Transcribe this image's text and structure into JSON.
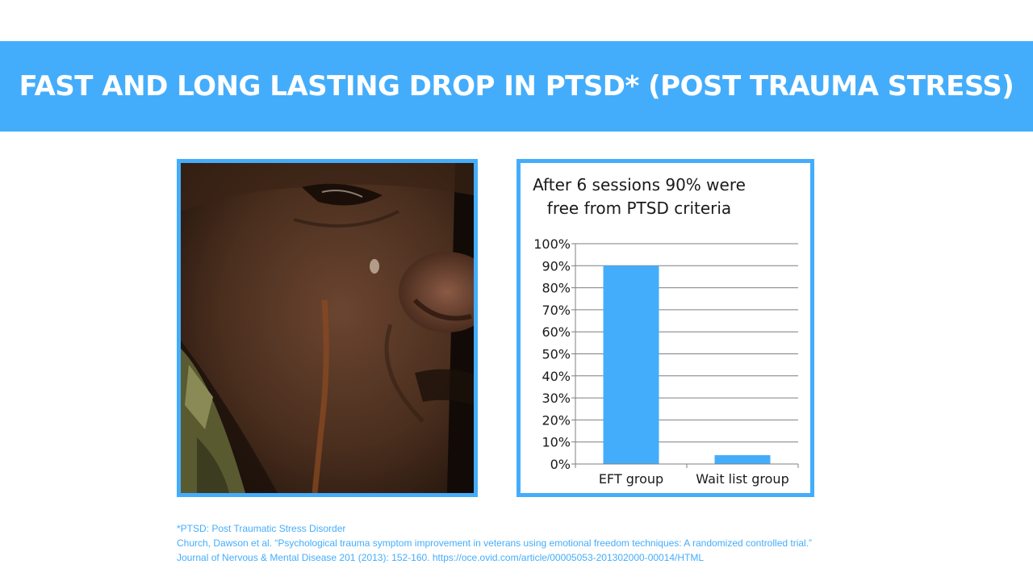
{
  "header": {
    "title": "FAST AND LONG LASTING DROP IN PTSD* (POST TRAUMA STRESS)"
  },
  "colors": {
    "accent": "#44adfb",
    "bar": "#44adfb",
    "text_dark": "#1a1a1a"
  },
  "photo": {
    "description_icon": "photo-crying-face"
  },
  "chart_data": {
    "type": "bar",
    "title_lines": [
      "After 6 sessions 90% were",
      "free from PTSD criteria"
    ],
    "categories": [
      "EFT group",
      "Wait list group"
    ],
    "values": [
      90,
      4
    ],
    "y_ticks": [
      "0%",
      "10%",
      "20%",
      "30%",
      "40%",
      "50%",
      "60%",
      "70%",
      "80%",
      "90%",
      "100%"
    ],
    "ylim": [
      0,
      100
    ],
    "grid": true,
    "legend": "none"
  },
  "footnotes": {
    "line1": "*PTSD: Post Traumatic Stress Disorder",
    "line2": "Church, Dawson et al. “Psychological trauma symptom improvement in veterans using emotional freedom techniques: A randomized controlled trial.”",
    "line3": "Journal of Nervous & Mental Disease 201 (2013): 152-160. https://oce.ovid.com/article/00005053-201302000-00014/HTML"
  }
}
